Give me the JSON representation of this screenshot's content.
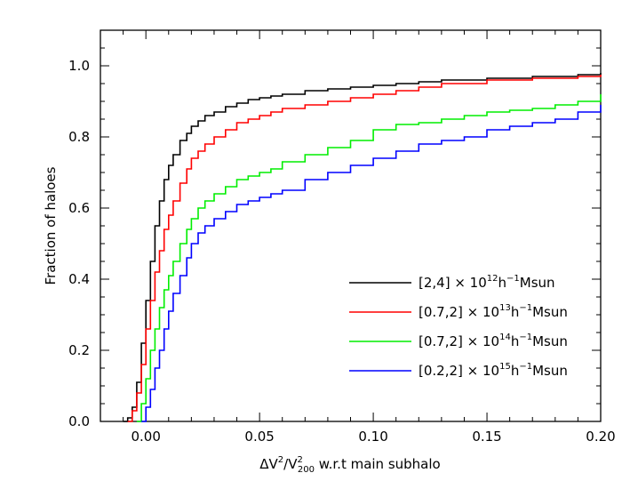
{
  "chart_data": {
    "type": "line",
    "title": "",
    "xlabel": {
      "delta": "Δ",
      "v": "V",
      "sup": "2",
      "slash": "/",
      "v2": "V",
      "v2_sup": "2",
      "v2_sub": "200",
      "rest": " w.r.t main subhalo"
    },
    "ylabel": "Fraction of haloes",
    "xlim": [
      -0.02,
      0.2
    ],
    "ylim": [
      0.0,
      1.1
    ],
    "xticks": [
      0.0,
      0.05,
      0.1,
      0.15,
      0.2
    ],
    "xtick_labels": [
      "0.00",
      "0.05",
      "0.10",
      "0.15",
      "0.20"
    ],
    "yticks": [
      0.0,
      0.2,
      0.4,
      0.6,
      0.8,
      1.0
    ],
    "ytick_labels": [
      "0.0",
      "0.2",
      "0.4",
      "0.6",
      "0.8",
      "1.0"
    ],
    "grid": false,
    "legend_position": "right",
    "series": [
      {
        "name": {
          "range": "[2,4]",
          "times": " × 10",
          "exp": "12",
          "h": "h",
          "hexp": "−1",
          "unit": "Msun"
        },
        "color": "#000000",
        "x": [
          -0.01,
          -0.008,
          -0.006,
          -0.004,
          -0.002,
          0.0,
          0.002,
          0.004,
          0.006,
          0.008,
          0.01,
          0.012,
          0.015,
          0.018,
          0.02,
          0.023,
          0.026,
          0.03,
          0.035,
          0.04,
          0.045,
          0.05,
          0.055,
          0.06,
          0.07,
          0.08,
          0.09,
          0.1,
          0.11,
          0.12,
          0.13,
          0.15,
          0.17,
          0.19,
          0.2
        ],
        "y": [
          0.0,
          0.01,
          0.04,
          0.11,
          0.22,
          0.34,
          0.45,
          0.55,
          0.62,
          0.68,
          0.72,
          0.75,
          0.79,
          0.81,
          0.83,
          0.845,
          0.86,
          0.87,
          0.885,
          0.895,
          0.905,
          0.91,
          0.915,
          0.92,
          0.93,
          0.935,
          0.94,
          0.945,
          0.95,
          0.955,
          0.96,
          0.965,
          0.97,
          0.975,
          0.98
        ]
      },
      {
        "name": {
          "range": "[0.7,2]",
          "times": " × 10",
          "exp": "13",
          "h": "h",
          "hexp": "−1",
          "unit": "Msun"
        },
        "color": "#ff0000",
        "x": [
          -0.008,
          -0.006,
          -0.004,
          -0.002,
          0.0,
          0.002,
          0.004,
          0.006,
          0.008,
          0.01,
          0.012,
          0.015,
          0.018,
          0.02,
          0.023,
          0.026,
          0.03,
          0.035,
          0.04,
          0.045,
          0.05,
          0.055,
          0.06,
          0.07,
          0.08,
          0.09,
          0.1,
          0.11,
          0.12,
          0.13,
          0.15,
          0.17,
          0.19,
          0.2
        ],
        "y": [
          0.0,
          0.03,
          0.08,
          0.16,
          0.26,
          0.34,
          0.42,
          0.48,
          0.54,
          0.58,
          0.62,
          0.67,
          0.71,
          0.74,
          0.76,
          0.78,
          0.8,
          0.82,
          0.84,
          0.85,
          0.86,
          0.87,
          0.88,
          0.89,
          0.9,
          0.91,
          0.92,
          0.93,
          0.94,
          0.95,
          0.96,
          0.965,
          0.97,
          0.975
        ]
      },
      {
        "name": {
          "range": "[0.7,2]",
          "times": " × 10",
          "exp": "14",
          "h": "h",
          "hexp": "−1",
          "unit": "Msun"
        },
        "color": "#00ee00",
        "x": [
          -0.004,
          -0.002,
          0.0,
          0.002,
          0.004,
          0.006,
          0.008,
          0.01,
          0.012,
          0.015,
          0.018,
          0.02,
          0.023,
          0.026,
          0.03,
          0.035,
          0.04,
          0.045,
          0.05,
          0.055,
          0.06,
          0.07,
          0.08,
          0.09,
          0.1,
          0.11,
          0.12,
          0.13,
          0.14,
          0.15,
          0.16,
          0.17,
          0.18,
          0.19,
          0.2
        ],
        "y": [
          0.0,
          0.05,
          0.12,
          0.2,
          0.26,
          0.32,
          0.37,
          0.41,
          0.45,
          0.5,
          0.54,
          0.57,
          0.6,
          0.62,
          0.64,
          0.66,
          0.68,
          0.69,
          0.7,
          0.71,
          0.73,
          0.75,
          0.77,
          0.79,
          0.82,
          0.835,
          0.84,
          0.85,
          0.86,
          0.87,
          0.875,
          0.88,
          0.89,
          0.9,
          0.92
        ]
      },
      {
        "name": {
          "range": "[0.2,2]",
          "times": " × 10",
          "exp": "15",
          "h": "h",
          "hexp": "−1",
          "unit": "Msun"
        },
        "color": "#0000ff",
        "x": [
          -0.002,
          0.0,
          0.002,
          0.004,
          0.006,
          0.008,
          0.01,
          0.012,
          0.015,
          0.018,
          0.02,
          0.023,
          0.026,
          0.03,
          0.035,
          0.04,
          0.045,
          0.05,
          0.055,
          0.06,
          0.07,
          0.08,
          0.09,
          0.1,
          0.11,
          0.12,
          0.13,
          0.14,
          0.15,
          0.16,
          0.17,
          0.18,
          0.19,
          0.2
        ],
        "y": [
          0.0,
          0.04,
          0.09,
          0.15,
          0.2,
          0.26,
          0.31,
          0.36,
          0.41,
          0.46,
          0.5,
          0.53,
          0.55,
          0.57,
          0.59,
          0.61,
          0.62,
          0.63,
          0.64,
          0.65,
          0.68,
          0.7,
          0.72,
          0.74,
          0.76,
          0.78,
          0.79,
          0.8,
          0.82,
          0.83,
          0.84,
          0.85,
          0.87,
          0.89
        ]
      }
    ]
  }
}
